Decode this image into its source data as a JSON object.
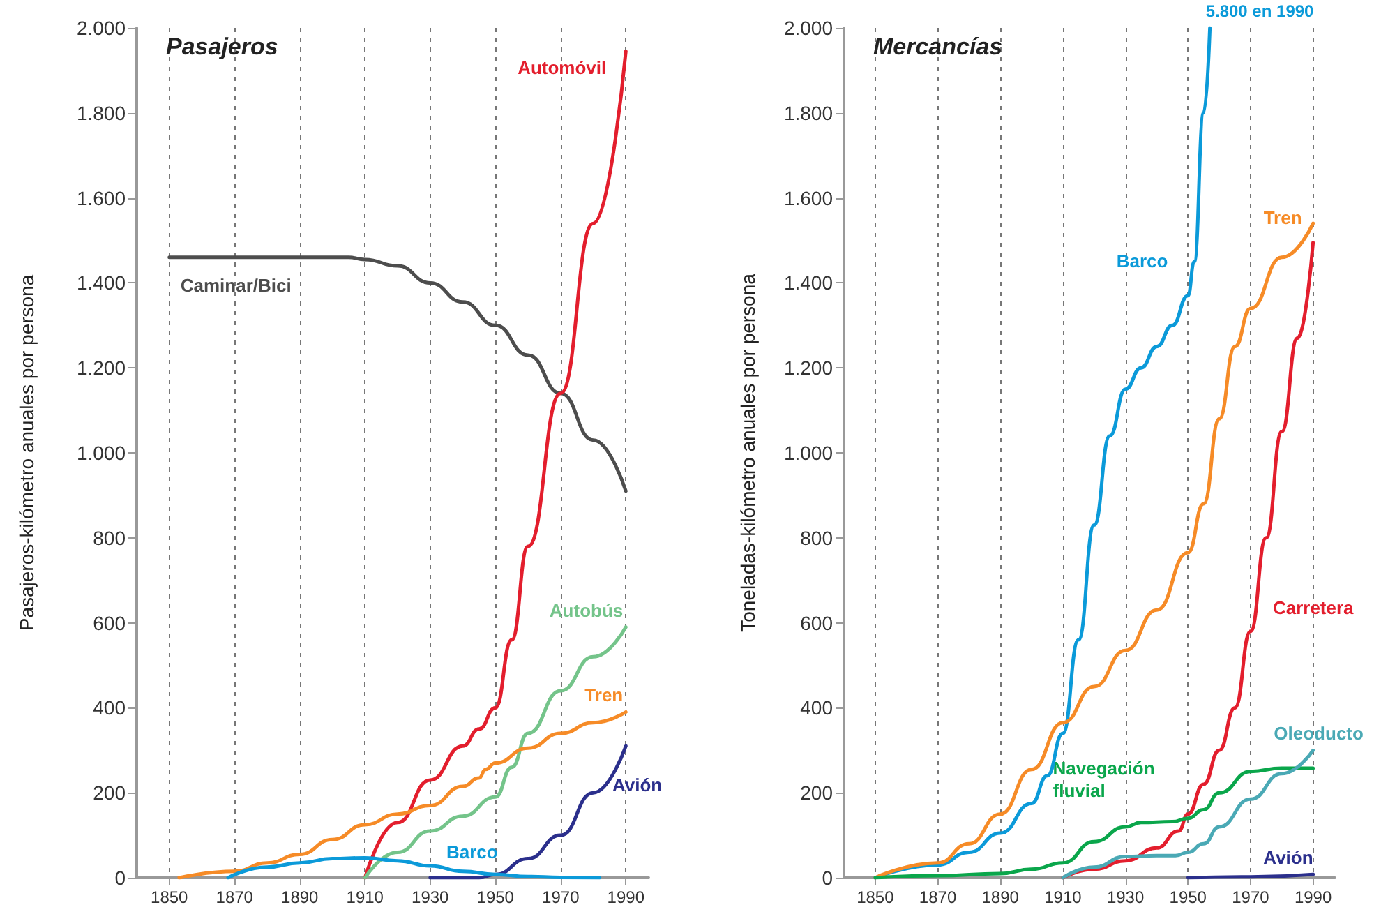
{
  "chart_data": [
    {
      "type": "line",
      "title": "Pasajeros",
      "ylabel": "Pasajeros-kilómetro anuales por persona",
      "xlim": [
        1840,
        1997
      ],
      "xticks": [
        1850,
        1870,
        1890,
        1910,
        1930,
        1950,
        1970,
        1990
      ],
      "ylim": [
        0,
        2000
      ],
      "yticks": [
        0,
        200,
        400,
        600,
        800,
        {
          "value": 1000,
          "label": "1.000"
        },
        {
          "value": 1200,
          "label": "1.200"
        },
        {
          "value": 1400,
          "label": "1.400"
        },
        {
          "value": 1600,
          "label": "1.600"
        },
        {
          "value": 1800,
          "label": "1.800"
        },
        {
          "value": 2000,
          "label": "2.000"
        }
      ],
      "grid": "x",
      "line_style": "solid",
      "series": [
        {
          "name": "Caminar/Bici",
          "color": "#4d4d4d",
          "x": [
            1850,
            1870,
            1890,
            1905,
            1910,
            1920,
            1930,
            1940,
            1950,
            1960,
            1970,
            1980,
            1990
          ],
          "values": [
            1460,
            1460,
            1460,
            1460,
            1455,
            1440,
            1400,
            1355,
            1300,
            1230,
            1140,
            1030,
            910
          ]
        },
        {
          "name": "Automóvil",
          "color": "#e31e2d",
          "x": [
            1910,
            1920,
            1930,
            1940,
            1945,
            1950,
            1955,
            1960,
            1970,
            1980,
            1990
          ],
          "values": [
            0,
            130,
            230,
            310,
            350,
            400,
            560,
            780,
            1140,
            1540,
            1945
          ]
        },
        {
          "name": "Autobús",
          "color": "#74c48a",
          "x": [
            1910,
            1920,
            1930,
            1940,
            1950,
            1955,
            1960,
            1970,
            1980,
            1990
          ],
          "values": [
            0,
            60,
            110,
            145,
            190,
            260,
            340,
            440,
            520,
            590
          ]
        },
        {
          "name": "Tren",
          "color": "#f68b27",
          "x": [
            1853,
            1870,
            1880,
            1890,
            1900,
            1910,
            1920,
            1930,
            1940,
            1945,
            1947,
            1950,
            1960,
            1970,
            1980,
            1990
          ],
          "values": [
            0,
            15,
            35,
            55,
            90,
            125,
            150,
            170,
            215,
            235,
            255,
            270,
            305,
            340,
            365,
            390
          ]
        },
        {
          "name": "Avión",
          "color": "#2b2f8c",
          "x": [
            1930,
            1945,
            1950,
            1960,
            1970,
            1980,
            1990
          ],
          "values": [
            0,
            0,
            8,
            45,
            100,
            200,
            310
          ]
        },
        {
          "name": "Barco",
          "color": "#0b9ad9",
          "x": [
            1868,
            1880,
            1890,
            1900,
            1910,
            1920,
            1930,
            1940,
            1950,
            1960,
            1970,
            1982
          ],
          "values": [
            0,
            25,
            35,
            45,
            47,
            40,
            28,
            15,
            8,
            3,
            1,
            0
          ]
        }
      ]
    },
    {
      "type": "line",
      "title": "Mercancías",
      "ylabel": "Toneladas-kilómetro anuales por persona",
      "xlim": [
        1840,
        1997
      ],
      "xticks": [
        1850,
        1870,
        1890,
        1910,
        1930,
        1950,
        1970,
        1990
      ],
      "ylim": [
        0,
        2000
      ],
      "yticks": [
        0,
        200,
        400,
        600,
        800,
        {
          "value": 1000,
          "label": "1.000"
        },
        {
          "value": 1200,
          "label": "1.200"
        },
        {
          "value": 1400,
          "label": "1.400"
        },
        {
          "value": 1600,
          "label": "1.600"
        },
        {
          "value": 1800,
          "label": "1.800"
        },
        {
          "value": 2000,
          "label": "2.000"
        }
      ],
      "grid": "x",
      "line_style": "solid",
      "annotations": [
        "5.800 en 1990"
      ],
      "series": [
        {
          "name": "Barco",
          "color": "#0b9ad9",
          "x": [
            1850,
            1870,
            1880,
            1890,
            1900,
            1905,
            1910,
            1915,
            1920,
            1925,
            1930,
            1935,
            1940,
            1945,
            1950,
            1952,
            1955,
            1957
          ],
          "values": [
            0,
            30,
            60,
            105,
            175,
            240,
            340,
            560,
            830,
            1040,
            1150,
            1200,
            1250,
            1300,
            1370,
            1450,
            1800,
            2000
          ]
        },
        {
          "name": "Tren",
          "color": "#f68b27",
          "x": [
            1850,
            1870,
            1880,
            1890,
            1900,
            1910,
            1920,
            1930,
            1940,
            1950,
            1955,
            1960,
            1965,
            1970,
            1980,
            1990
          ],
          "values": [
            0,
            35,
            80,
            150,
            255,
            365,
            450,
            535,
            630,
            765,
            880,
            1080,
            1250,
            1340,
            1460,
            1540
          ]
        },
        {
          "name": "Carretera",
          "color": "#e31e2d",
          "x": [
            1910,
            1920,
            1930,
            1940,
            1947,
            1950,
            1955,
            1960,
            1965,
            1970,
            1975,
            1980,
            1985,
            1990
          ],
          "values": [
            0,
            20,
            40,
            70,
            110,
            150,
            220,
            300,
            400,
            580,
            800,
            1050,
            1270,
            1495
          ]
        },
        {
          "name": "Navegación fluvial",
          "color": "#0aa64b",
          "x": [
            1850,
            1870,
            1890,
            1900,
            1910,
            1920,
            1930,
            1935,
            1945,
            1950,
            1955,
            1960,
            1970,
            1980,
            1990
          ],
          "values": [
            0,
            5,
            10,
            20,
            35,
            85,
            120,
            130,
            132,
            140,
            160,
            200,
            250,
            258,
            258
          ]
        },
        {
          "name": "Oleoducto",
          "color": "#4aa9b5",
          "x": [
            1910,
            1920,
            1930,
            1940,
            1946,
            1950,
            1955,
            1960,
            1970,
            1980,
            1990
          ],
          "values": [
            0,
            25,
            50,
            52,
            52,
            60,
            80,
            120,
            185,
            245,
            300
          ]
        },
        {
          "name": "Avión",
          "color": "#2b2f8c",
          "x": [
            1950,
            1970,
            1990
          ],
          "values": [
            0,
            2,
            8
          ]
        }
      ]
    }
  ]
}
